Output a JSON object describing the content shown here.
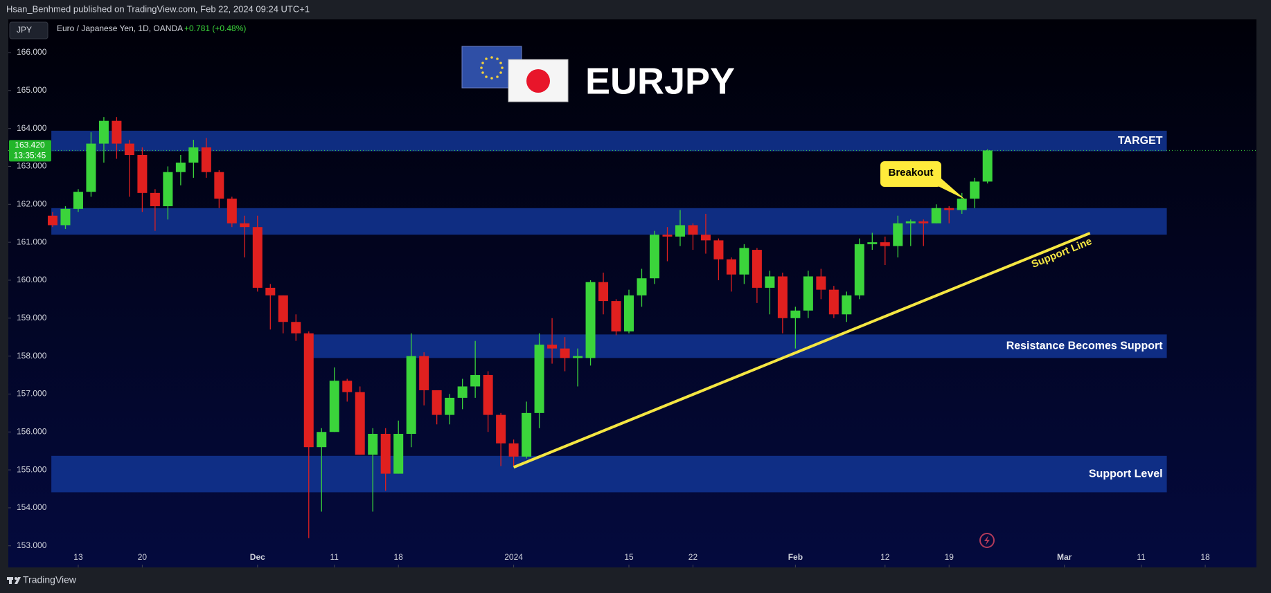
{
  "header": {
    "publisher": "Hsan_Benhmed published on TradingView.com, Feb 22, 2024 09:24 UTC+1",
    "symbol_box": "JPY",
    "instrument": "Euro / Japanese Yen, 1D, OANDA",
    "change": "+0.781 (+0.48%)"
  },
  "footer": {
    "brand": "TradingView"
  },
  "chart_data": {
    "type": "candlestick",
    "title": "EURJPY",
    "up_color": "#3bd43b",
    "down_color": "#e0201f",
    "open": [
      161.7,
      161.45,
      161.88,
      162.33,
      163.6,
      164.2,
      163.6,
      163.3,
      162.3,
      161.95,
      162.85,
      163.1,
      163.5,
      162.85,
      162.15,
      161.5,
      161.4,
      159.8,
      159.6,
      158.9,
      158.6,
      155.6,
      156.0,
      157.35,
      157.05,
      155.4,
      155.95,
      154.9,
      155.95,
      158.0,
      157.1,
      156.45,
      156.9,
      157.2,
      157.5,
      156.45,
      155.7,
      155.35,
      156.5,
      158.3,
      158.2,
      157.95,
      157.95,
      159.95,
      159.45,
      158.65,
      159.6,
      160.05,
      161.2,
      161.15,
      161.45,
      161.2,
      161.05,
      160.55,
      160.15,
      160.8,
      159.8,
      160.1,
      159.0,
      159.2,
      160.1,
      159.75,
      159.1,
      159.6,
      160.95,
      161.0,
      160.9,
      161.5,
      161.55,
      161.5,
      161.9,
      161.85,
      162.15,
      162.6
    ],
    "high": [
      161.8,
      161.95,
      162.4,
      163.9,
      164.3,
      164.3,
      163.7,
      163.5,
      162.4,
      163.0,
      163.3,
      163.7,
      163.75,
      162.9,
      162.2,
      161.7,
      161.7,
      159.9,
      159.6,
      159.1,
      158.65,
      156.1,
      157.7,
      157.4,
      157.2,
      156.1,
      156.1,
      156.3,
      158.6,
      158.1,
      157.1,
      157.0,
      157.4,
      158.4,
      157.6,
      156.5,
      155.8,
      156.8,
      158.6,
      159.0,
      158.5,
      158.2,
      160.0,
      160.2,
      159.5,
      159.75,
      160.3,
      161.3,
      161.4,
      161.85,
      161.5,
      161.75,
      161.1,
      160.6,
      160.95,
      160.85,
      160.25,
      160.2,
      159.3,
      160.25,
      160.3,
      159.85,
      159.7,
      161.1,
      161.25,
      161.15,
      161.7,
      161.6,
      161.6,
      162.0,
      161.95,
      162.3,
      162.7,
      163.45
    ],
    "low": [
      161.4,
      161.35,
      161.8,
      162.2,
      163.1,
      163.2,
      162.2,
      161.8,
      161.3,
      161.6,
      162.5,
      162.7,
      162.7,
      161.9,
      161.4,
      160.6,
      159.7,
      158.7,
      158.6,
      158.4,
      153.2,
      153.9,
      156.0,
      156.8,
      155.4,
      153.9,
      154.45,
      154.9,
      155.6,
      156.7,
      156.2,
      156.2,
      156.6,
      156.9,
      156.0,
      155.1,
      155.1,
      155.3,
      156.1,
      157.8,
      157.6,
      157.2,
      157.75,
      159.1,
      158.55,
      158.6,
      159.3,
      159.9,
      160.5,
      160.9,
      160.8,
      160.7,
      160.0,
      159.7,
      159.9,
      159.4,
      159.1,
      158.6,
      158.2,
      159.0,
      159.5,
      159.0,
      158.9,
      159.5,
      160.8,
      160.4,
      160.6,
      160.9,
      160.9,
      161.5,
      161.5,
      161.75,
      161.9,
      162.55
    ],
    "close": [
      161.45,
      161.88,
      162.33,
      163.6,
      164.2,
      163.6,
      163.3,
      162.3,
      161.95,
      162.85,
      163.1,
      163.5,
      162.85,
      162.15,
      161.5,
      161.4,
      159.8,
      159.6,
      158.9,
      158.6,
      155.6,
      156.0,
      157.35,
      157.05,
      155.4,
      155.95,
      154.9,
      155.95,
      158.0,
      157.1,
      156.45,
      156.9,
      157.2,
      157.5,
      156.45,
      155.7,
      155.35,
      156.5,
      158.3,
      158.2,
      157.95,
      158.0,
      159.95,
      159.45,
      158.65,
      159.6,
      160.05,
      161.2,
      161.15,
      161.45,
      161.2,
      161.05,
      160.55,
      160.15,
      160.85,
      159.8,
      160.1,
      159.0,
      159.2,
      160.1,
      159.75,
      159.1,
      159.6,
      160.95,
      161.0,
      160.9,
      161.5,
      161.55,
      161.5,
      161.9,
      161.85,
      162.15,
      162.6,
      163.42
    ],
    "xlim": [
      -3.46,
      94
    ],
    "ylim": [
      152.43,
      166.875
    ],
    "xticks": [
      {
        "value": 2,
        "label": "13"
      },
      {
        "value": 7,
        "label": "20"
      },
      {
        "value": 16,
        "label": "Dec"
      },
      {
        "value": 22,
        "label": "11"
      },
      {
        "value": 27,
        "label": "18"
      },
      {
        "value": 36,
        "label": "2024"
      },
      {
        "value": 45,
        "label": "15"
      },
      {
        "value": 50,
        "label": "22"
      },
      {
        "value": 58,
        "label": "Feb"
      },
      {
        "value": 65,
        "label": "12"
      },
      {
        "value": 70,
        "label": "19"
      },
      {
        "value": 79,
        "label": "Mar"
      },
      {
        "value": 85,
        "label": "11"
      },
      {
        "value": 90,
        "label": "18"
      }
    ],
    "yticks": [
      {
        "value": 153,
        "label": "153.000"
      },
      {
        "value": 154,
        "label": "154.000"
      },
      {
        "value": 155,
        "label": "155.000"
      },
      {
        "value": 156,
        "label": "156.000"
      },
      {
        "value": 157,
        "label": "157.000"
      },
      {
        "value": 158,
        "label": "158.000"
      },
      {
        "value": 159,
        "label": "159.000"
      },
      {
        "value": 160,
        "label": "160.000"
      },
      {
        "value": 161,
        "label": "161.000"
      },
      {
        "value": 162,
        "label": "162.000"
      },
      {
        "value": 163,
        "label": "163.000"
      },
      {
        "value": 164,
        "label": "164.000"
      },
      {
        "value": 165,
        "label": "165.000"
      },
      {
        "value": 166,
        "label": "166.000"
      }
    ],
    "zone_color": "#123594",
    "zones": [
      {
        "label": "TARGET",
        "top": 163.94,
        "bottom": 163.4,
        "start": -0.1,
        "end": 87
      },
      {
        "top": 161.9,
        "bottom": 161.2,
        "start": -0.1,
        "end": 87
      },
      {
        "label": "Resistance Becomes Support",
        "top": 158.57,
        "bottom": 157.95,
        "start": 20,
        "end": 87
      },
      {
        "label": "Support Level",
        "top": 155.37,
        "bottom": 154.41,
        "start": -0.1,
        "end": 87
      }
    ],
    "trendline": {
      "label": "Support Line",
      "color": "#f5e642",
      "x": [
        36,
        81
      ],
      "y": [
        155.07,
        161.24
      ]
    },
    "annotation": {
      "text": "Breakout"
    },
    "last_price": {
      "value": 163.42,
      "label": "163.420",
      "countdown": "13:35:45"
    }
  }
}
